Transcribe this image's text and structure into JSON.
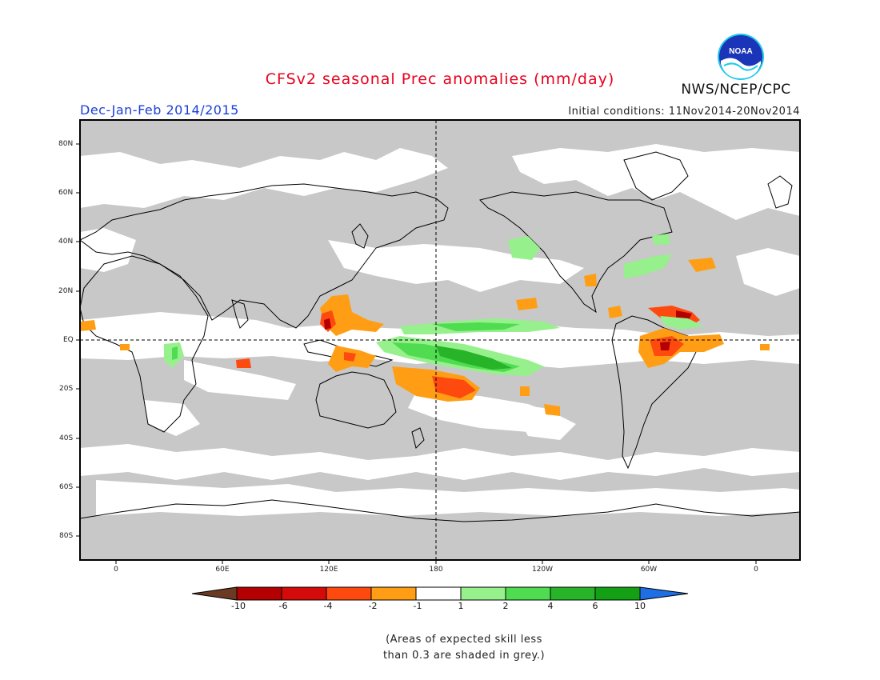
{
  "header": {
    "title": "CFSv2 seasonal Prec anomalies (mm/day)",
    "subtitle": "Dec-Jan-Feb 2014/2015",
    "initial_conditions": "Initial conditions: 11Nov2014-20Nov2014",
    "agency": "NWS/NCEP/CPC",
    "logo_text": "NOAA"
  },
  "map": {
    "lat_labels": [
      "80N",
      "60N",
      "40N",
      "20N",
      "EQ",
      "20S",
      "40S",
      "60S",
      "80S"
    ],
    "lon_labels": [
      "0",
      "60E",
      "120E",
      "180",
      "120W",
      "60W",
      "0"
    ],
    "colors": {
      "skill_grey": "#c8c8c8",
      "land_outline": "#000000"
    }
  },
  "colorbar": {
    "labels": [
      "-10",
      "-6",
      "-4",
      "-2",
      "-1",
      "1",
      "2",
      "4",
      "6",
      "10"
    ],
    "colors": [
      "#6b3a22",
      "#b40000",
      "#d50a0a",
      "#ff4a0f",
      "#ff9e14",
      "#ffffff",
      "#96f08c",
      "#50dc50",
      "#28b428",
      "#14a014",
      "#1e6ee6"
    ]
  },
  "footnote": {
    "line1": "(Areas of expected skill less",
    "line2": "than 0.3 are shaded in grey.)"
  }
}
